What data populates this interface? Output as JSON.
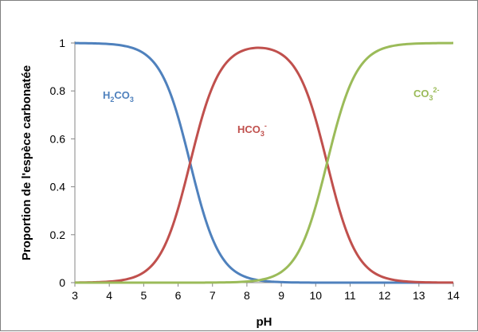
{
  "chart_data": {
    "type": "line",
    "title": "",
    "xlabel": "pH",
    "ylabel": "Proportion de l'espèce carbonatée",
    "xlim": [
      3,
      14
    ],
    "ylim": [
      0,
      1
    ],
    "x_ticks": [
      "3",
      "4",
      "5",
      "6",
      "7",
      "8",
      "9",
      "10",
      "11",
      "12",
      "13",
      "14"
    ],
    "y_ticks": [
      "0",
      "0.2",
      "0.4",
      "0.6",
      "0.8",
      "1"
    ],
    "grid": false,
    "pKa1": 6.35,
    "pKa2": 10.33,
    "x": [
      3,
      4,
      5,
      5.5,
      6,
      6.35,
      6.5,
      7,
      7.5,
      8,
      8.35,
      8.5,
      9,
      9.5,
      10,
      10.33,
      10.5,
      11,
      11.5,
      12,
      13,
      14
    ],
    "series": [
      {
        "name": "H2CO3",
        "label_main": "H",
        "label_sub": "2",
        "label_main2": "CO",
        "label_sub2": "3",
        "label_sup": "",
        "color": "#4f81bd",
        "values": [
          1.0,
          0.996,
          0.957,
          0.875,
          0.691,
          0.5,
          0.414,
          0.183,
          0.066,
          0.022,
          0.01,
          0.007,
          0.002,
          0.001,
          0.0,
          0.0,
          0.0,
          0.0,
          0.0,
          0.0,
          0.0,
          0.0
        ]
      },
      {
        "name": "HCO3-",
        "label_main": "HCO",
        "label_sub": "3",
        "label_main2": "",
        "label_sub2": "",
        "label_sup": "-",
        "color": "#c0504d",
        "values": [
          0.0,
          0.004,
          0.043,
          0.125,
          0.309,
          0.5,
          0.586,
          0.816,
          0.93,
          0.956,
          0.98,
          0.975,
          0.951,
          0.851,
          0.676,
          0.5,
          0.402,
          0.176,
          0.062,
          0.021,
          0.002,
          0.0
        ]
      },
      {
        "name": "CO32-",
        "label_main": "CO",
        "label_sub": "3",
        "label_main2": "",
        "label_sub2": "",
        "label_sup": "2-",
        "color": "#9bbb59",
        "values": [
          0.0,
          0.0,
          0.0,
          0.0,
          0.0,
          0.0,
          0.0,
          0.001,
          0.004,
          0.022,
          0.01,
          0.018,
          0.047,
          0.148,
          0.324,
          0.5,
          0.598,
          0.824,
          0.938,
          0.979,
          0.998,
          1.0
        ]
      }
    ]
  }
}
